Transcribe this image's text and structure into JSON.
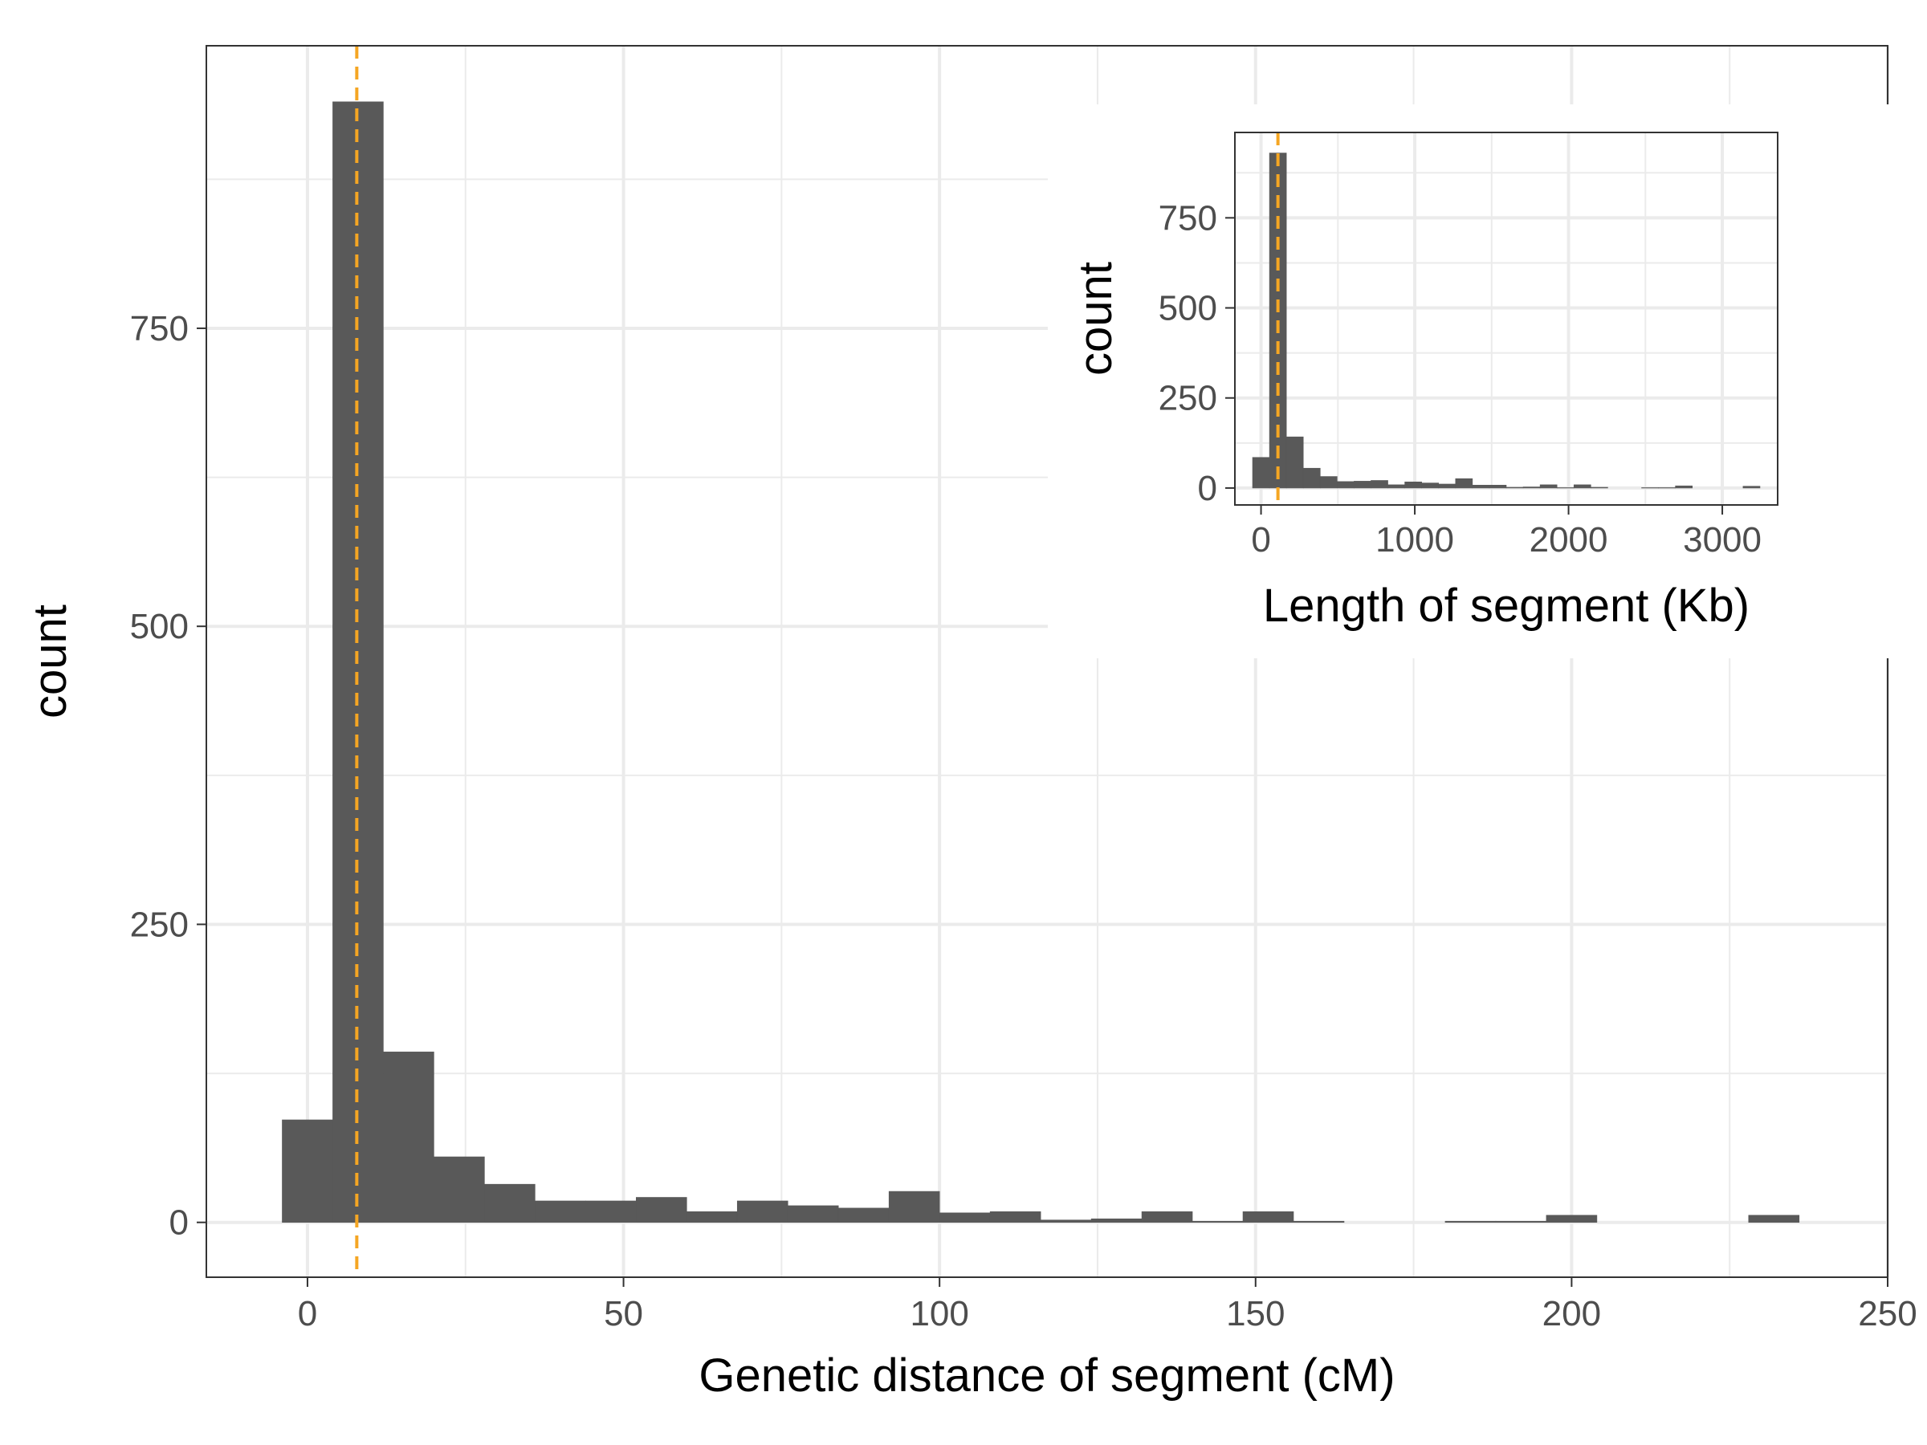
{
  "chart_data": [
    {
      "type": "bar",
      "role": "main-histogram",
      "xlabel": "Genetic distance of segment (cM)",
      "ylabel": "count",
      "xlim": [
        -16,
        250
      ],
      "ylim": [
        -46,
        987
      ],
      "x_ticks": [
        0,
        50,
        100,
        150,
        200,
        250
      ],
      "y_ticks": [
        0,
        250,
        500,
        750
      ],
      "bin_width": 8,
      "bin_centers": [
        0,
        8,
        16,
        24,
        32,
        40,
        48,
        56,
        64,
        72,
        80,
        88,
        96,
        104,
        112,
        120,
        128,
        136,
        144,
        152,
        160,
        168,
        176,
        184,
        192,
        200,
        208,
        216,
        224,
        232
      ],
      "values": [
        86,
        940,
        143,
        55,
        32,
        18,
        18,
        21,
        9,
        18,
        14,
        12,
        26,
        8,
        9,
        2,
        3,
        9,
        1,
        9,
        1,
        0,
        0,
        1,
        1,
        6,
        0,
        0,
        0,
        6
      ],
      "reference_line": {
        "x": 7.8,
        "color": "#f5a623",
        "style": "dashed"
      },
      "grid": true,
      "colors": {
        "bar": "#595959",
        "panel_border": "#333333",
        "grid": "#ebebeb"
      }
    },
    {
      "type": "bar",
      "role": "inset-histogram",
      "xlabel": "Length of segment (Kb)",
      "ylabel": "count",
      "xlim": [
        -170,
        3360
      ],
      "ylim": [
        -47,
        987
      ],
      "x_ticks": [
        0,
        1000,
        2000,
        3000
      ],
      "y_ticks": [
        0,
        250,
        500,
        750
      ],
      "bin_width": 110,
      "bin_centers": [
        0,
        110,
        220,
        330,
        440,
        550,
        660,
        770,
        880,
        990,
        1100,
        1210,
        1320,
        1430,
        1540,
        1650,
        1760,
        1870,
        1980,
        2090,
        2200,
        2310,
        2420,
        2530,
        2640,
        2750,
        2860,
        2970,
        3080,
        3190
      ],
      "values": [
        85,
        930,
        142,
        55,
        32,
        18,
        19,
        21,
        9,
        17,
        14,
        11,
        26,
        8,
        8,
        2,
        3,
        9,
        1,
        9,
        2,
        0,
        0,
        1,
        1,
        6,
        0,
        0,
        0,
        5
      ],
      "reference_line": {
        "x": 110,
        "color": "#f5a623",
        "style": "dashed"
      },
      "grid": true,
      "colors": {
        "bar": "#595959",
        "panel_border": "#333333",
        "grid": "#ebebeb"
      }
    }
  ]
}
